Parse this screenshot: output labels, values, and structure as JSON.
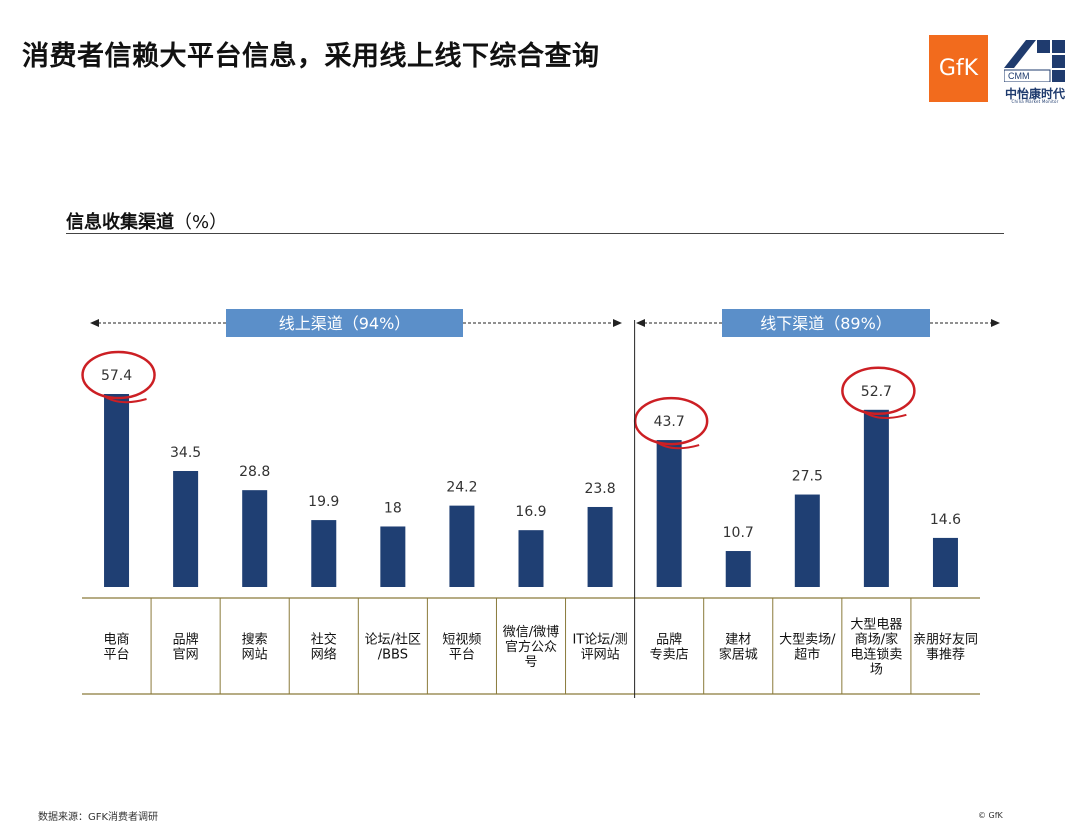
{
  "header": {
    "title": "消费者信赖大平台信息，采用线上线下综合查询",
    "logo_gfk": "GfK",
    "logo_cmm": "CMM",
    "logo_cmm_name": "中怡康时代",
    "logo_cmm_sub": "China Market Monitor"
  },
  "section": {
    "title": "信息收集渠道",
    "unit": "（%）"
  },
  "groups": {
    "online": "线上渠道（94%）",
    "offline": "线下渠道（89%）"
  },
  "chart_data": {
    "type": "bar",
    "categories": [
      "电商\n平台",
      "品牌\n官网",
      "搜索\n网站",
      "社交\n网络",
      "论坛/社区\n/BBS",
      "短视频\n平台",
      "微信/微博\n官方公众\n号",
      "IT论坛/测\n评网站",
      "品牌\n专卖店",
      "建材\n家居城",
      "大型卖场/\n超市",
      "大型电器\n商场/家\n电连锁卖\n场",
      "亲朋好友同\n事推荐"
    ],
    "values": [
      57.4,
      34.5,
      28.8,
      19.9,
      18,
      24.2,
      16.9,
      23.8,
      43.7,
      10.7,
      27.5,
      52.7,
      14.6
    ],
    "value_labels": [
      "57.4",
      "34.5",
      "28.8",
      "19.9",
      "18",
      "24.2",
      "16.9",
      "23.8",
      "43.7",
      "10.7",
      "27.5",
      "52.7",
      "14.6"
    ],
    "highlighted": [
      "电商\n平台",
      "品牌\n专卖店",
      "大型电器\n商场/家\n电连锁卖\n场"
    ],
    "bar_color": "#1f3f73",
    "banner_color": "#5b8fc9",
    "highlight_color": "#cc1f24",
    "table_line_color": "#8a7a3a"
  },
  "footer": {
    "source": "数据来源：GFK消费者调研",
    "copyright": "© GfK"
  }
}
